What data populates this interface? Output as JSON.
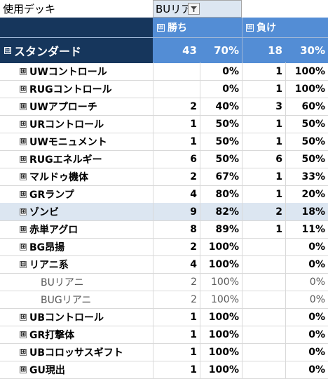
{
  "filter": {
    "label": "使用デッキ",
    "value": "BUリア",
    "dropdown_icon": "filter-funnel-icon"
  },
  "columns": {
    "win": {
      "toggle": "⊞",
      "label": "勝ち"
    },
    "lose": {
      "toggle": "⊞",
      "label": "負け"
    }
  },
  "grand": {
    "toggle": "⊟",
    "label": "スタンダード",
    "win_count": "43",
    "win_pct": "70%",
    "lose_count": "18",
    "lose_pct": "30%"
  },
  "rows": [
    {
      "toggle": "⊞",
      "name": "UWコントロール",
      "wc": "",
      "wp": "0%",
      "lc": "1",
      "lp": "100%"
    },
    {
      "toggle": "⊞",
      "name": "RUGコントロール",
      "wc": "",
      "wp": "0%",
      "lc": "1",
      "lp": "100%"
    },
    {
      "toggle": "⊞",
      "name": "UWアプローチ",
      "wc": "2",
      "wp": "40%",
      "lc": "3",
      "lp": "60%"
    },
    {
      "toggle": "⊞",
      "name": "URコントロール",
      "wc": "1",
      "wp": "50%",
      "lc": "1",
      "lp": "50%"
    },
    {
      "toggle": "⊞",
      "name": "UWモニュメント",
      "wc": "1",
      "wp": "50%",
      "lc": "1",
      "lp": "50%"
    },
    {
      "toggle": "⊞",
      "name": "RUGエネルギー",
      "wc": "6",
      "wp": "50%",
      "lc": "6",
      "lp": "50%"
    },
    {
      "toggle": "⊞",
      "name": "マルドゥ機体",
      "wc": "2",
      "wp": "67%",
      "lc": "1",
      "lp": "33%"
    },
    {
      "toggle": "⊞",
      "name": "GRランプ",
      "wc": "4",
      "wp": "80%",
      "lc": "1",
      "lp": "20%"
    },
    {
      "toggle": "⊞",
      "name": "ゾンビ",
      "wc": "9",
      "wp": "82%",
      "lc": "2",
      "lp": "18%",
      "hl": true
    },
    {
      "toggle": "⊞",
      "name": "赤単アグロ",
      "wc": "8",
      "wp": "89%",
      "lc": "1",
      "lp": "11%"
    },
    {
      "toggle": "⊞",
      "name": "BG昂揚",
      "wc": "2",
      "wp": "100%",
      "lc": "",
      "lp": "0%"
    },
    {
      "toggle": "⊟",
      "name": "リアニ系",
      "wc": "4",
      "wp": "100%",
      "lc": "",
      "lp": "0%"
    },
    {
      "toggle": "",
      "name": "BUリアニ",
      "wc": "2",
      "wp": "100%",
      "lc": "",
      "lp": "0%",
      "sub": true
    },
    {
      "toggle": "",
      "name": "BUGリアニ",
      "wc": "2",
      "wp": "100%",
      "lc": "",
      "lp": "0%",
      "sub": true
    },
    {
      "toggle": "⊞",
      "name": "UBコントロール",
      "wc": "1",
      "wp": "100%",
      "lc": "",
      "lp": "0%"
    },
    {
      "toggle": "⊞",
      "name": "GR打撃体",
      "wc": "1",
      "wp": "100%",
      "lc": "",
      "lp": "0%"
    },
    {
      "toggle": "⊞",
      "name": "UBコロッサスギフト",
      "wc": "1",
      "wp": "100%",
      "lc": "",
      "lp": "0%"
    },
    {
      "toggle": "⊞",
      "name": "GU現出",
      "wc": "1",
      "wp": "100%",
      "lc": "",
      "lp": "0%"
    }
  ]
}
